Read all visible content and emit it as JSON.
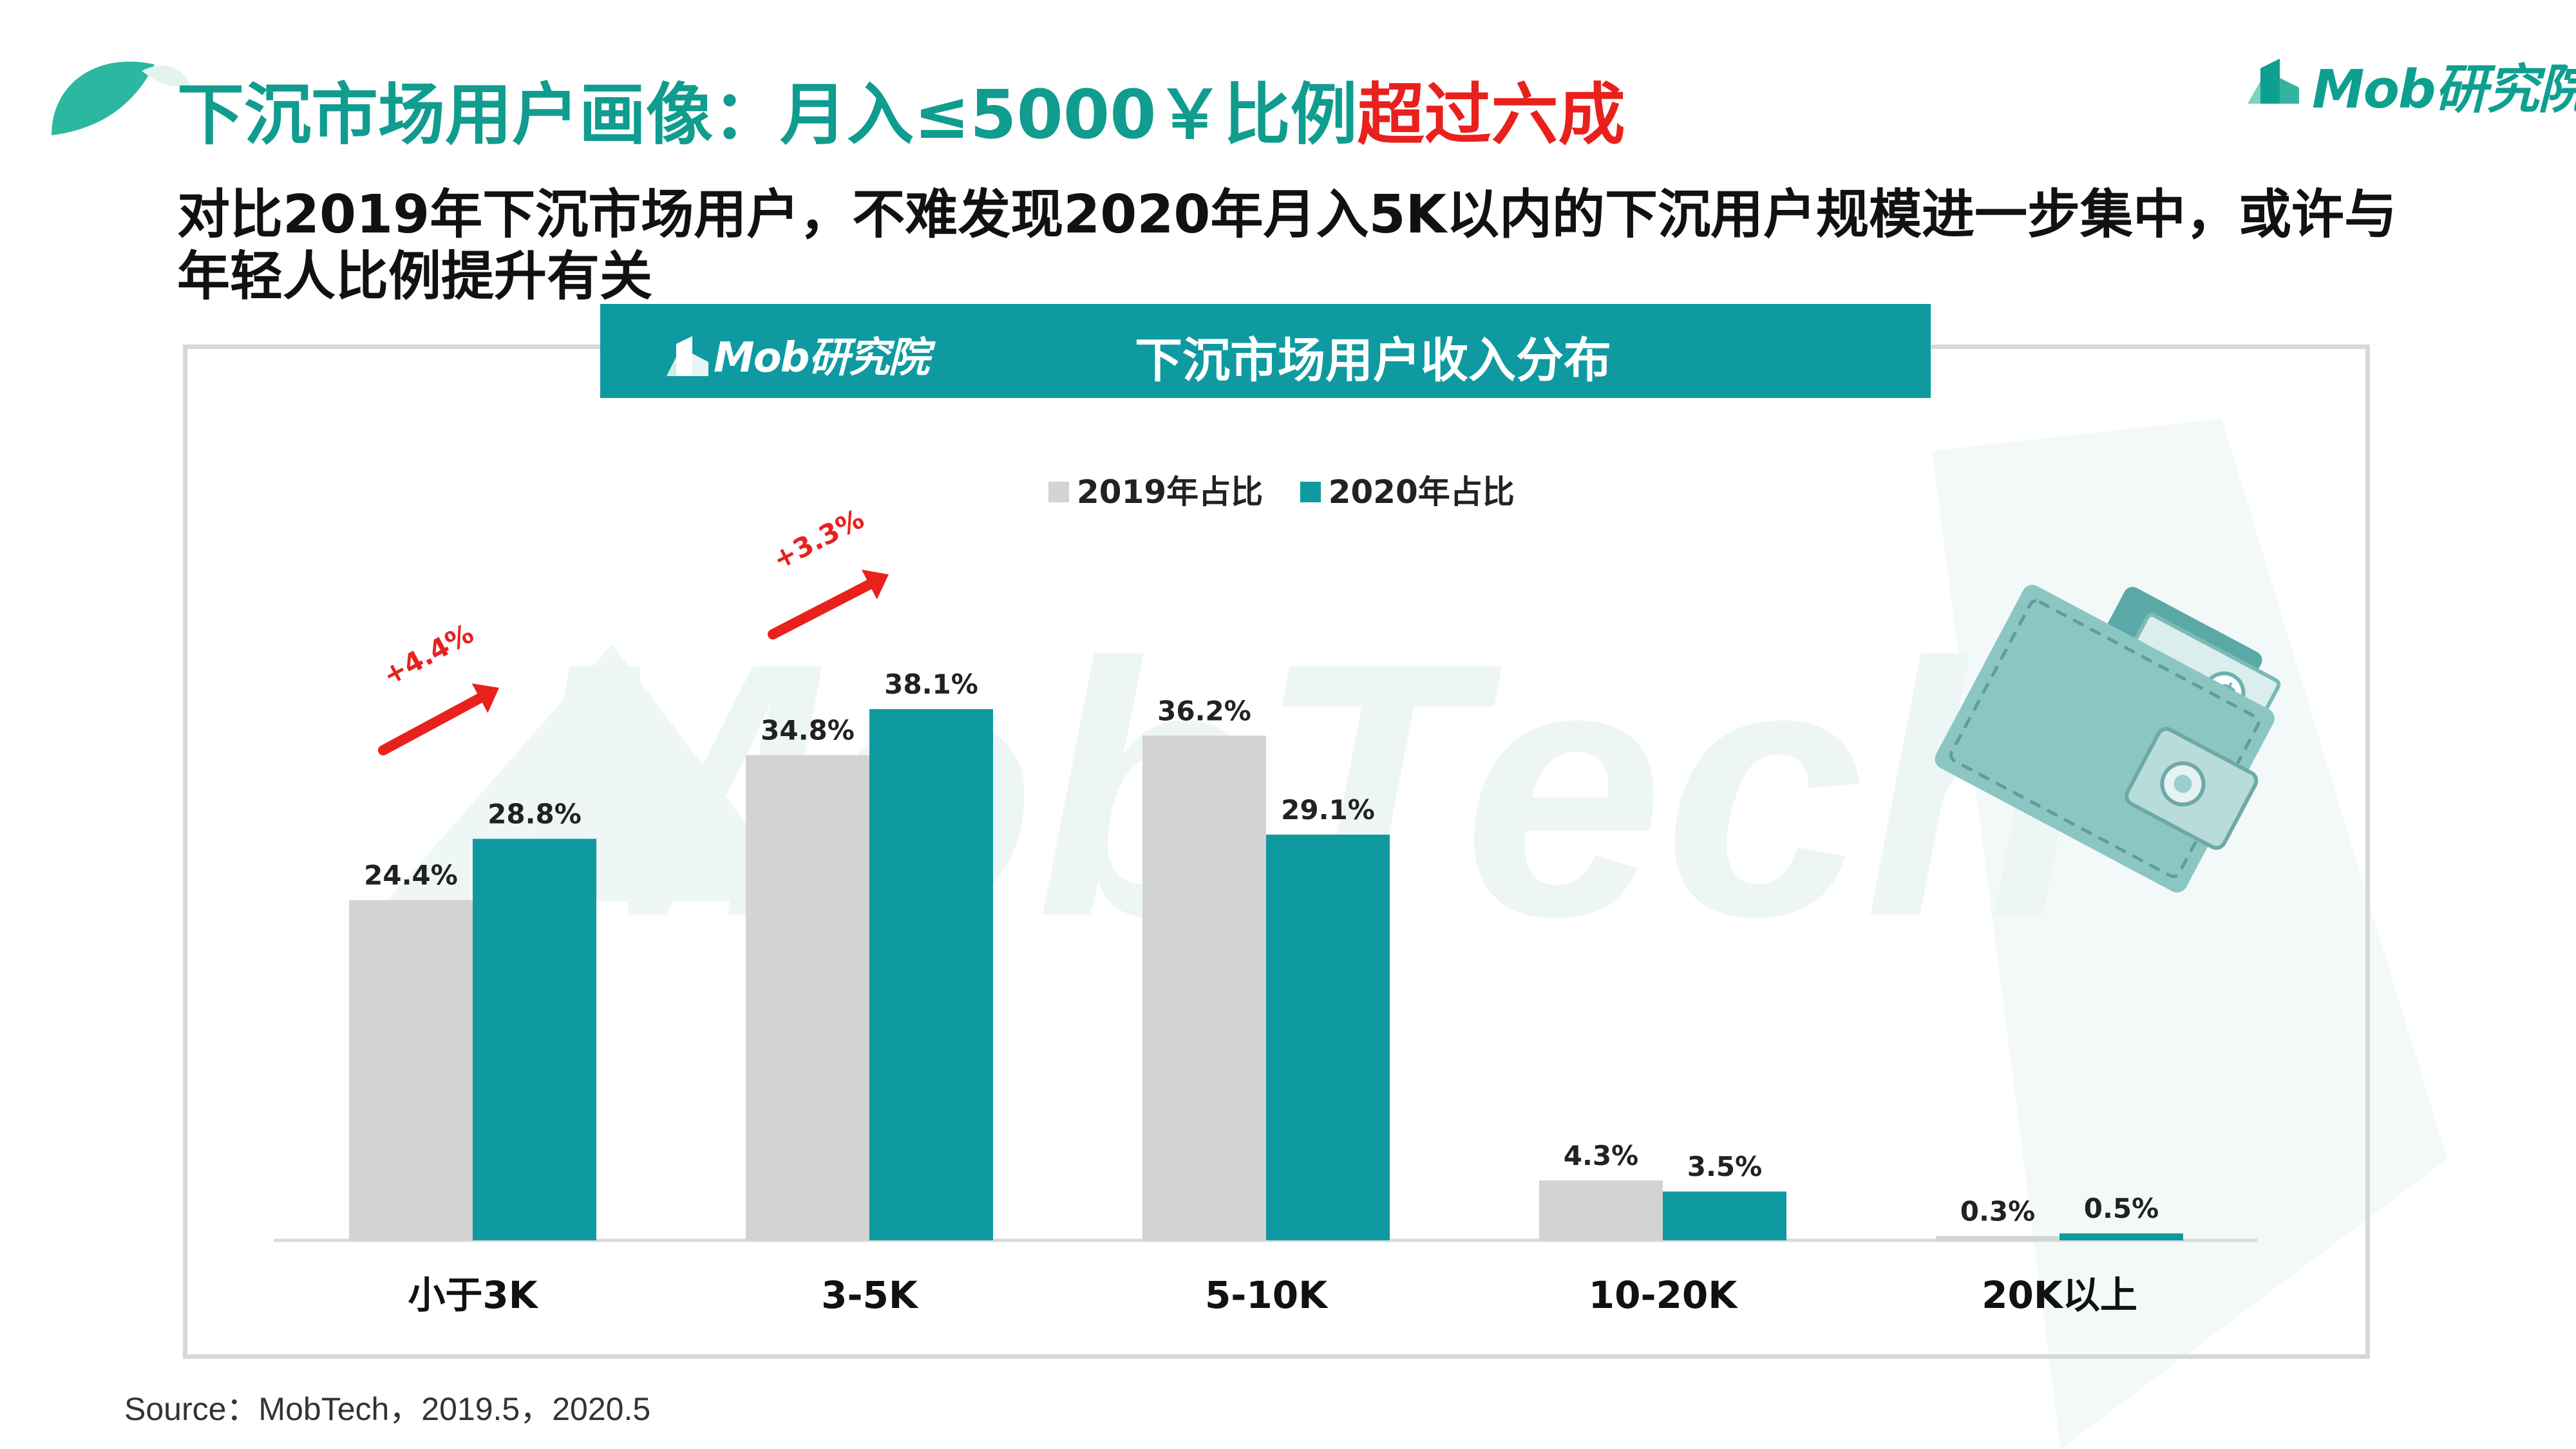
{
  "header": {
    "title_main": "下沉市场用户画像：月入≤5000￥比例",
    "title_highlight": "超过六成",
    "subtitle": "对比2019年下沉市场用户，不难发现2020年月入5K以内的下沉用户规模进一步集中，或许与年轻人比例提升有关",
    "logo_text": "Mob研究院"
  },
  "banner": {
    "title": "下沉市场用户收入分布",
    "logo_text": "Mob研究院"
  },
  "watermark": {
    "text": "MobTech"
  },
  "source": "Source：MobTech，2019.5，2020.5",
  "colors": {
    "accent": "#109c8e",
    "highlight": "#e8211d",
    "bar2019": "#d3d3d3",
    "bar2020": "#0e9aa0"
  },
  "chart_data": {
    "type": "bar",
    "title": "下沉市场用户收入分布",
    "categories": [
      "小于3K",
      "3-5K",
      "5-10K",
      "10-20K",
      "20K以上"
    ],
    "series": [
      {
        "name": "2019年占比",
        "values": [
          24.4,
          34.8,
          36.2,
          4.3,
          0.3
        ],
        "labels": [
          "24.4%",
          "34.8%",
          "36.2%",
          "4.3%",
          "0.3%"
        ],
        "color": "#d3d3d3"
      },
      {
        "name": "2020年占比",
        "values": [
          28.8,
          38.1,
          29.1,
          3.5,
          0.5
        ],
        "labels": [
          "28.8%",
          "38.1%",
          "29.1%",
          "3.5%",
          "0.5%"
        ],
        "color": "#0e9aa0"
      }
    ],
    "annotations": [
      {
        "category": "小于3K",
        "text": "+4.4%"
      },
      {
        "category": "3-5K",
        "text": "+3.3%"
      }
    ],
    "ylim": [
      0,
      40
    ],
    "grid": false,
    "legend": "top-center"
  }
}
